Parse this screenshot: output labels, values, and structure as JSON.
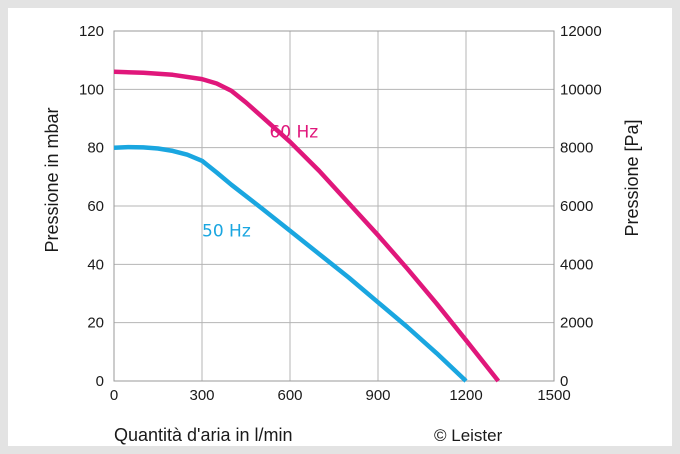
{
  "chart_data": {
    "type": "line",
    "xlabel": "Quantità d'aria in l/min",
    "ylabel": "Pressione in mbar",
    "y2label": "Pressione [Pa]",
    "xlim": [
      0,
      1500
    ],
    "ylim": [
      0,
      120
    ],
    "y2lim": [
      0,
      12000
    ],
    "x_ticks": [
      "0",
      "300",
      "600",
      "900",
      "1200",
      "1500"
    ],
    "y_ticks": [
      "0",
      "20",
      "40",
      "60",
      "80",
      "100",
      "120"
    ],
    "y2_ticks": [
      "0",
      "2000",
      "4000",
      "6000",
      "8000",
      "10000",
      "12000"
    ],
    "grid": true,
    "credit": "© Leister",
    "series": [
      {
        "name": "60 Hz",
        "color": "#e0177b",
        "x": [
          0,
          100,
          200,
          300,
          350,
          400,
          450,
          500,
          600,
          700,
          800,
          900,
          1000,
          1100,
          1200,
          1310
        ],
        "y": [
          106,
          105.7,
          105,
          103.5,
          102,
          99.5,
          95.5,
          91,
          82,
          72,
          61,
          50,
          38.5,
          26.5,
          14,
          0
        ]
      },
      {
        "name": "50 Hz",
        "color": "#1aa6e0",
        "x": [
          0,
          50,
          100,
          150,
          200,
          250,
          300,
          350,
          400,
          500,
          600,
          700,
          800,
          900,
          1000,
          1100,
          1200
        ],
        "y": [
          80,
          80.2,
          80.1,
          79.7,
          78.9,
          77.6,
          75.5,
          71.5,
          67.3,
          59.5,
          51.5,
          43.5,
          35.5,
          27,
          18.5,
          9.5,
          0
        ]
      }
    ]
  }
}
